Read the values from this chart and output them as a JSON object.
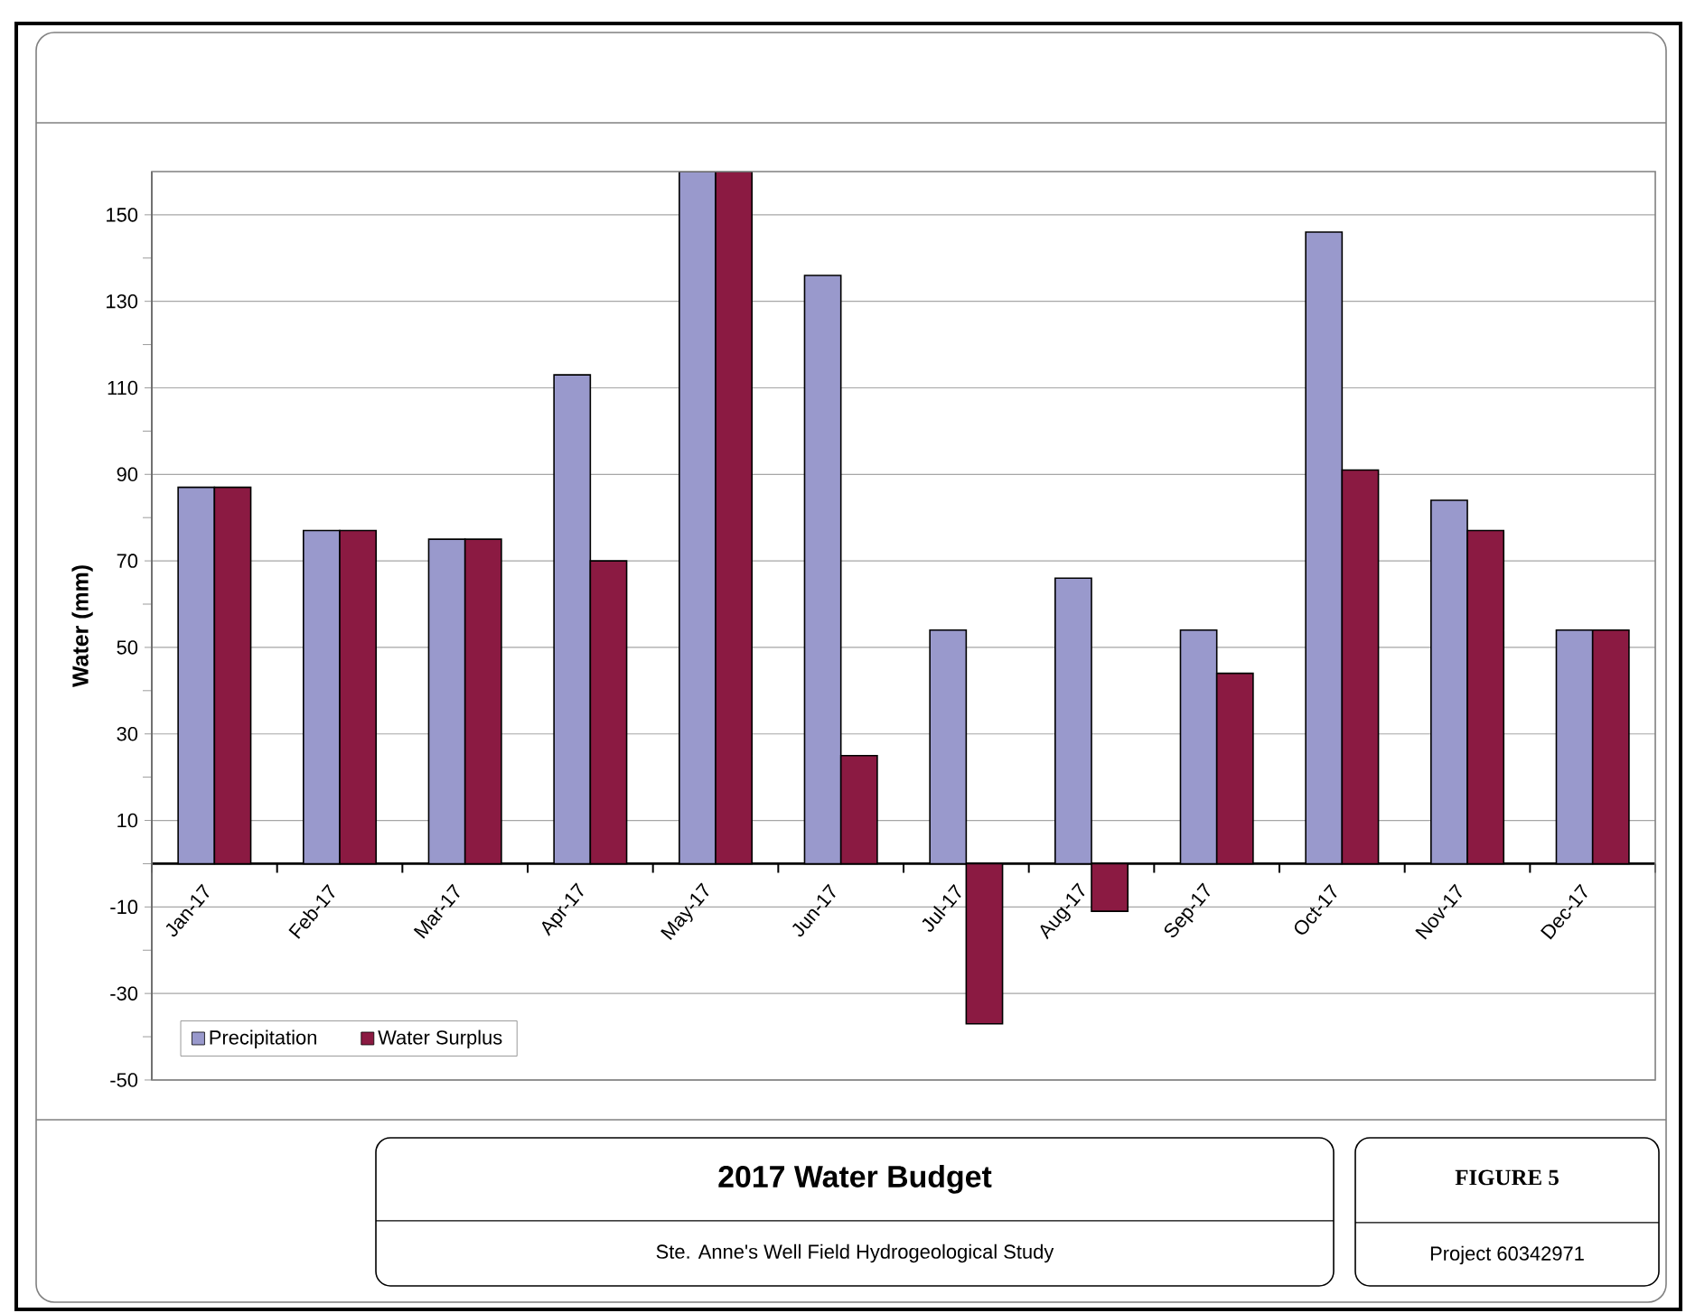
{
  "chart_data": {
    "type": "bar",
    "title": "2017 Water Budget",
    "subtitle": "Ste. Anne's Well Field Hydrogeological Study",
    "ylabel": "Water (mm)",
    "categories": [
      "Jan-17",
      "Feb-17",
      "Mar-17",
      "Apr-17",
      "May-17",
      "Jun-17",
      "Jul-17",
      "Aug-17",
      "Sep-17",
      "Oct-17",
      "Nov-17",
      "Dec-17"
    ],
    "series": [
      {
        "name": "Precipitation",
        "color": "#9999cc",
        "values": [
          87,
          77,
          75,
          113,
          160,
          136,
          54,
          66,
          54,
          146,
          84,
          54
        ]
      },
      {
        "name": "Water Surplus",
        "color": "#8b1a42",
        "values": [
          87,
          77,
          75,
          70,
          160,
          25,
          -37,
          -11,
          44,
          91,
          77,
          54
        ]
      }
    ],
    "ylim": [
      -50,
      160
    ],
    "yticks": [
      -50,
      -30,
      -10,
      10,
      30,
      50,
      70,
      90,
      110,
      130,
      150
    ],
    "grid": "y",
    "legend": "bottom left",
    "annotations": [
      "FIGURE 5",
      "Project 60342971"
    ]
  }
}
